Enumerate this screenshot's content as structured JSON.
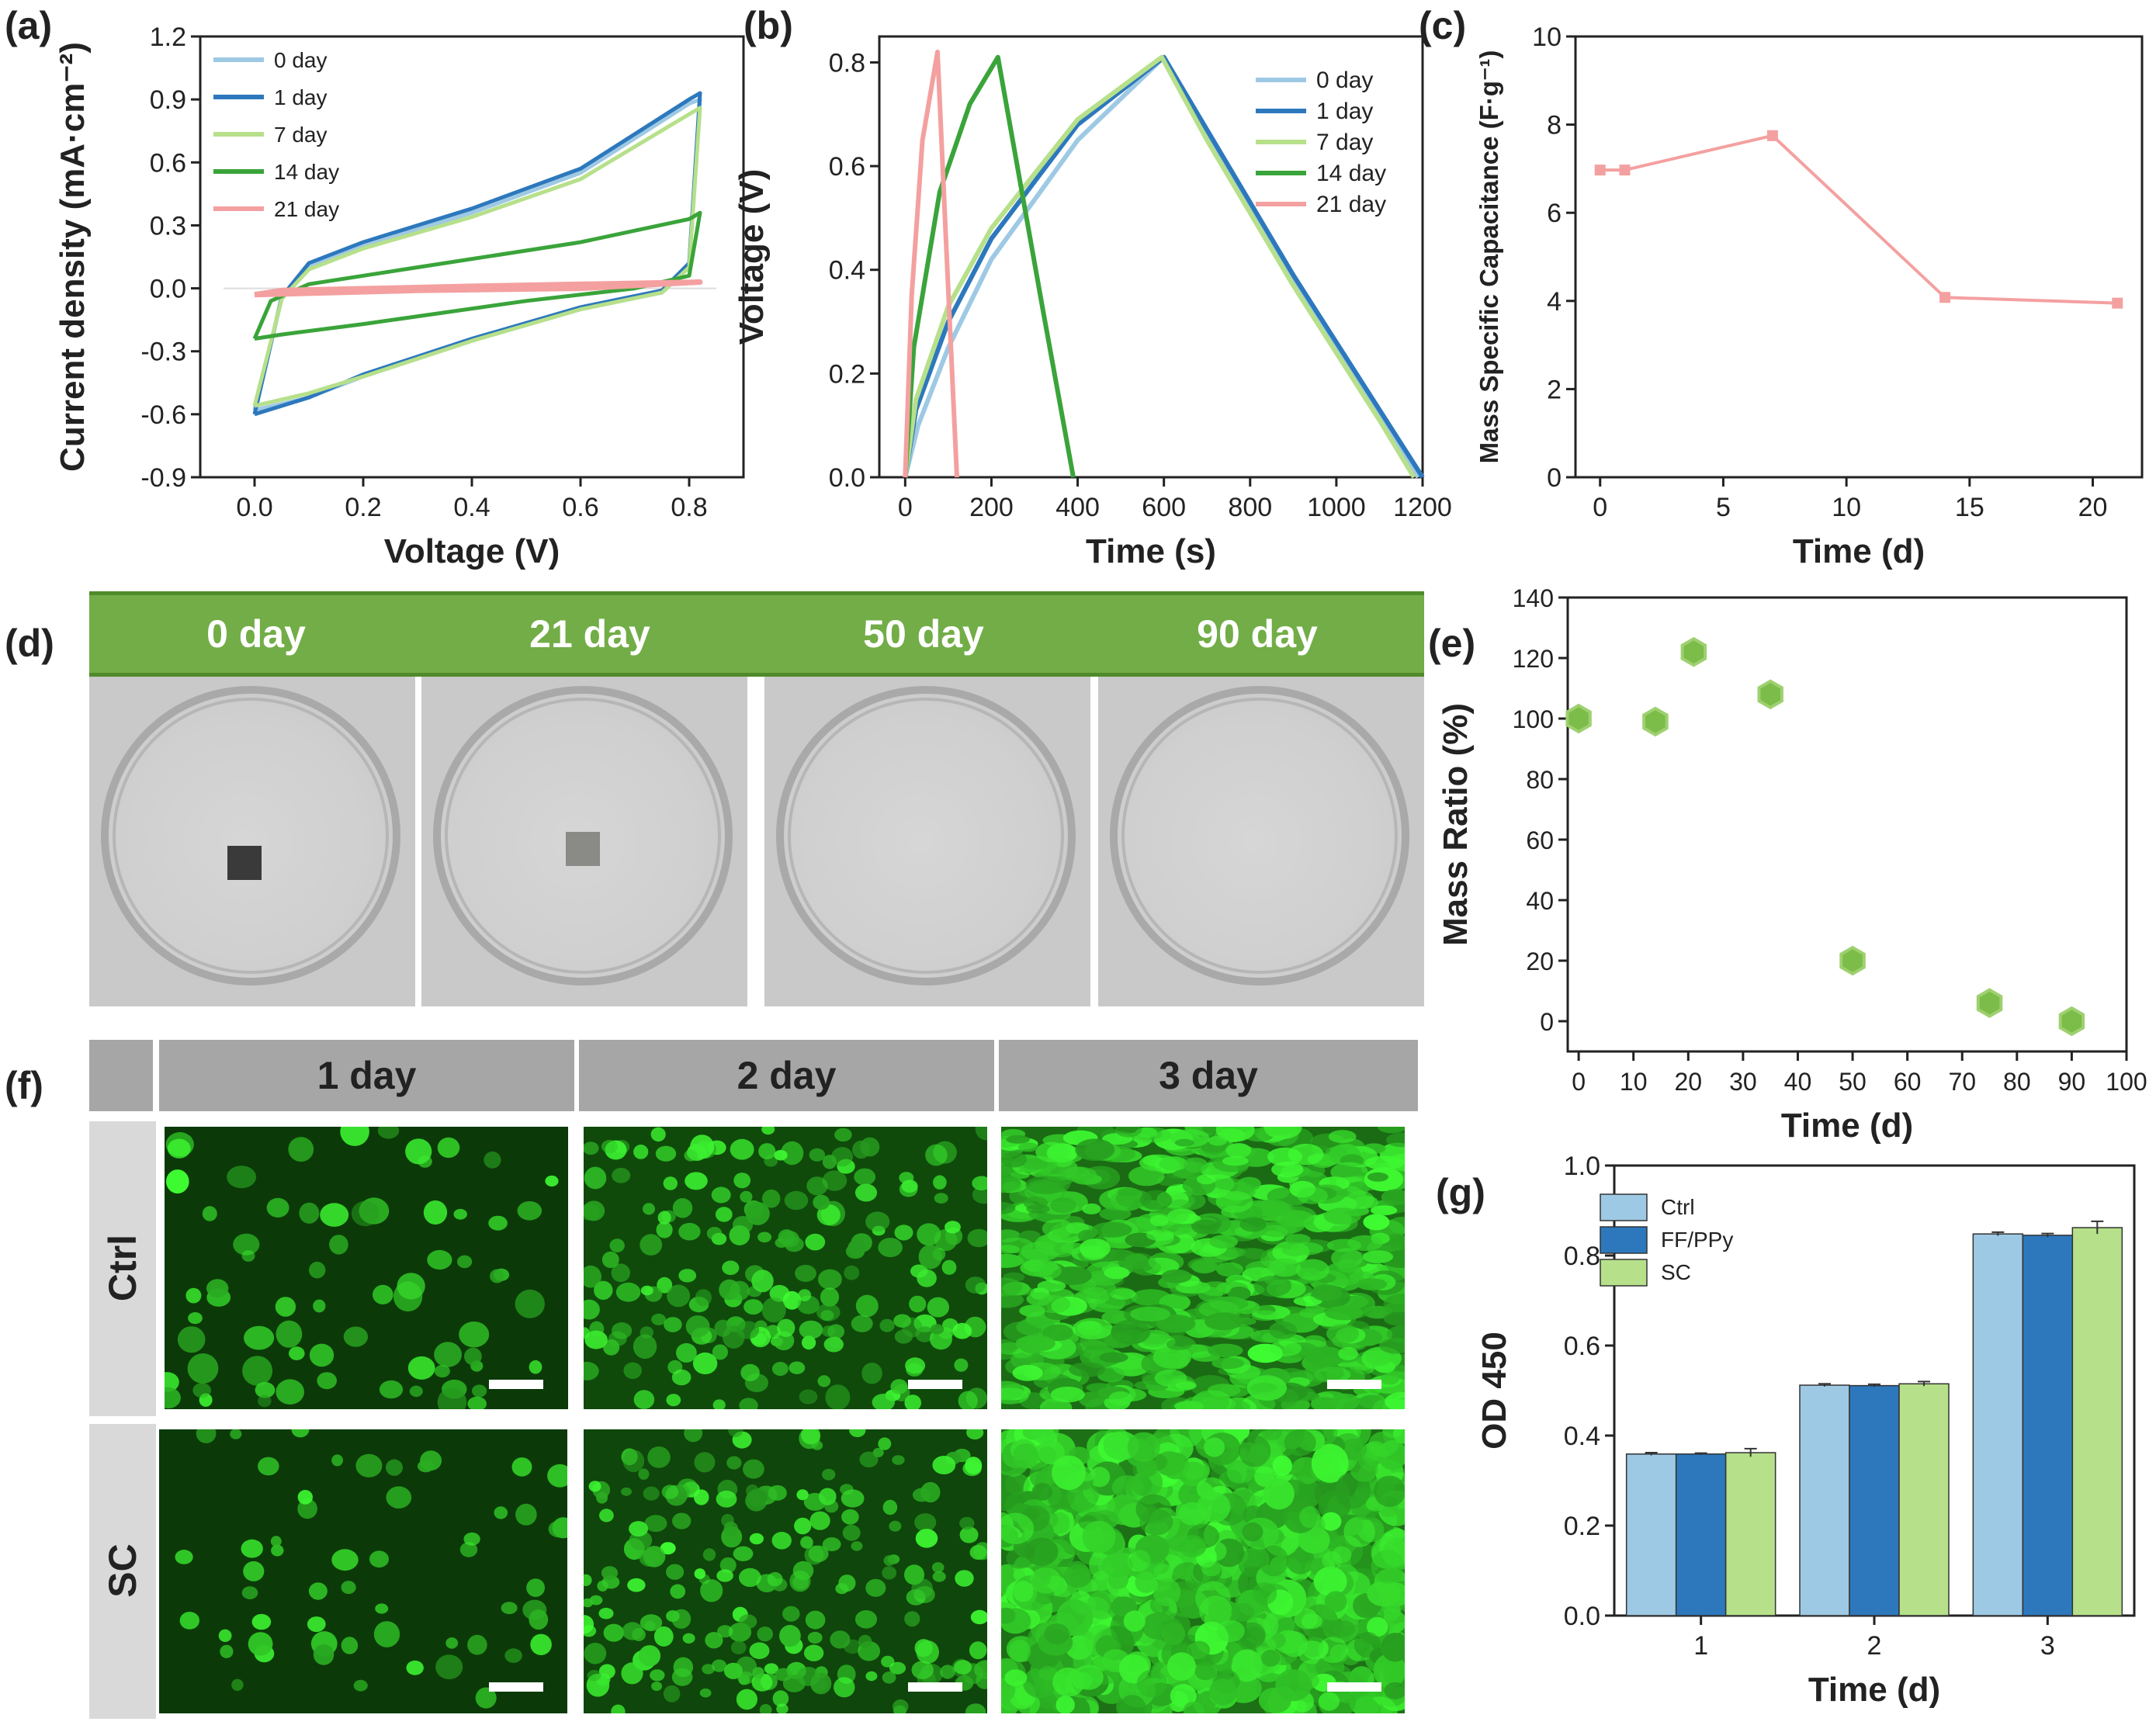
{
  "panel_labels": {
    "a": "(a)",
    "b": "(b)",
    "c": "(c)",
    "d": "(d)",
    "e": "(e)",
    "f": "(f)",
    "g": "(g)"
  },
  "colors": {
    "c0": "#9ec9e4",
    "c1": "#2d78bd",
    "c7": "#b6e08a",
    "c14": "#3aa43a",
    "c21": "#f4a0a0",
    "green_marker": "#7cbc48",
    "banner": "#72ad47"
  },
  "panel_d": {
    "days": [
      "0 day",
      "21 day",
      "50 day",
      "90 day"
    ]
  },
  "panel_f": {
    "columns": [
      "1 day",
      "2 day",
      "3 day"
    ],
    "rows": [
      "Ctrl",
      "SC"
    ]
  },
  "chart_data": [
    {
      "id": "a",
      "type": "line",
      "title": "",
      "xlabel": "Voltage (V)",
      "ylabel": "Current density (mA·cm⁻²)",
      "xlim": [
        -0.1,
        0.9
      ],
      "ylim": [
        -0.9,
        1.2
      ],
      "xticks": [
        "0.0",
        "0.2",
        "0.4",
        "0.6",
        "0.8"
      ],
      "yticks": [
        "-0.9",
        "-0.6",
        "-0.3",
        "0.0",
        "0.3",
        "0.6",
        "0.9",
        "1.2"
      ],
      "legend": [
        "0 day",
        "1 day",
        "7 day",
        "14 day",
        "21 day"
      ],
      "legend_position": "top-left",
      "series": [
        {
          "name": "0 day",
          "upper": [
            [
              0,
              -0.58
            ],
            [
              0.05,
              -0.05
            ],
            [
              0.1,
              0.1
            ],
            [
              0.2,
              0.2
            ],
            [
              0.4,
              0.36
            ],
            [
              0.6,
              0.55
            ],
            [
              0.8,
              0.88
            ],
            [
              0.82,
              0.9
            ]
          ],
          "lower": [
            [
              0.82,
              0.9
            ],
            [
              0.8,
              0.1
            ],
            [
              0.75,
              -0.02
            ],
            [
              0.6,
              -0.1
            ],
            [
              0.4,
              -0.25
            ],
            [
              0.2,
              -0.42
            ],
            [
              0.1,
              -0.52
            ],
            [
              0,
              -0.58
            ]
          ]
        },
        {
          "name": "1 day",
          "upper": [
            [
              0,
              -0.6
            ],
            [
              0.05,
              -0.04
            ],
            [
              0.1,
              0.12
            ],
            [
              0.2,
              0.22
            ],
            [
              0.4,
              0.38
            ],
            [
              0.6,
              0.57
            ],
            [
              0.8,
              0.9
            ],
            [
              0.82,
              0.93
            ]
          ],
          "lower": [
            [
              0.82,
              0.93
            ],
            [
              0.8,
              0.12
            ],
            [
              0.75,
              -0.01
            ],
            [
              0.6,
              -0.09
            ],
            [
              0.4,
              -0.24
            ],
            [
              0.2,
              -0.41
            ],
            [
              0.1,
              -0.52
            ],
            [
              0,
              -0.6
            ]
          ]
        },
        {
          "name": "7 day",
          "upper": [
            [
              0,
              -0.56
            ],
            [
              0.05,
              -0.05
            ],
            [
              0.1,
              0.09
            ],
            [
              0.2,
              0.19
            ],
            [
              0.4,
              0.34
            ],
            [
              0.6,
              0.52
            ],
            [
              0.8,
              0.83
            ],
            [
              0.82,
              0.86
            ]
          ],
          "lower": [
            [
              0.82,
              0.86
            ],
            [
              0.8,
              0.1
            ],
            [
              0.75,
              -0.02
            ],
            [
              0.6,
              -0.1
            ],
            [
              0.4,
              -0.25
            ],
            [
              0.2,
              -0.42
            ],
            [
              0.1,
              -0.5
            ],
            [
              0,
              -0.56
            ]
          ]
        },
        {
          "name": "14 day",
          "upper": [
            [
              0,
              -0.24
            ],
            [
              0.03,
              -0.06
            ],
            [
              0.1,
              0.02
            ],
            [
              0.3,
              0.1
            ],
            [
              0.6,
              0.22
            ],
            [
              0.8,
              0.33
            ],
            [
              0.82,
              0.36
            ]
          ],
          "lower": [
            [
              0.82,
              0.36
            ],
            [
              0.8,
              0.06
            ],
            [
              0.7,
              0.0
            ],
            [
              0.5,
              -0.06
            ],
            [
              0.2,
              -0.17
            ],
            [
              0.05,
              -0.22
            ],
            [
              0,
              -0.24
            ]
          ]
        },
        {
          "name": "21 day",
          "upper": [
            [
              0,
              -0.03
            ],
            [
              0.05,
              -0.01
            ],
            [
              0.4,
              0.01
            ],
            [
              0.82,
              0.03
            ]
          ],
          "lower": [
            [
              0.82,
              0.03
            ],
            [
              0.6,
              0.0
            ],
            [
              0.3,
              -0.01
            ],
            [
              0,
              -0.03
            ]
          ]
        }
      ]
    },
    {
      "id": "b",
      "type": "line",
      "xlabel": "Time (s)",
      "ylabel": "Voltage (V)",
      "xlim": [
        -60,
        1200
      ],
      "ylim": [
        0,
        0.85
      ],
      "xticks": [
        "0",
        "200",
        "400",
        "600",
        "800",
        "1000",
        "1200"
      ],
      "yticks": [
        "0.0",
        "0.2",
        "0.4",
        "0.6",
        "0.8"
      ],
      "legend": [
        "0 day",
        "1 day",
        "7 day",
        "14 day",
        "21 day"
      ],
      "legend_position": "top-right",
      "series": [
        {
          "name": "0 day",
          "points": [
            [
              0,
              0
            ],
            [
              30,
              0.1
            ],
            [
              100,
              0.25
            ],
            [
              200,
              0.42
            ],
            [
              400,
              0.65
            ],
            [
              600,
              0.81
            ],
            [
              700,
              0.66
            ],
            [
              900,
              0.38
            ],
            [
              1100,
              0.12
            ],
            [
              1190,
              0
            ]
          ]
        },
        {
          "name": "1 day",
          "points": [
            [
              0,
              0
            ],
            [
              25,
              0.13
            ],
            [
              100,
              0.3
            ],
            [
              200,
              0.46
            ],
            [
              400,
              0.68
            ],
            [
              600,
              0.81
            ],
            [
              700,
              0.67
            ],
            [
              900,
              0.39
            ],
            [
              1100,
              0.13
            ],
            [
              1200,
              0
            ]
          ]
        },
        {
          "name": "7 day",
          "points": [
            [
              0,
              0
            ],
            [
              25,
              0.15
            ],
            [
              100,
              0.33
            ],
            [
              200,
              0.48
            ],
            [
              400,
              0.69
            ],
            [
              595,
              0.81
            ],
            [
              700,
              0.65
            ],
            [
              900,
              0.37
            ],
            [
              1100,
              0.11
            ],
            [
              1180,
              0
            ]
          ]
        },
        {
          "name": "14 day",
          "points": [
            [
              0,
              0
            ],
            [
              20,
              0.25
            ],
            [
              80,
              0.55
            ],
            [
              150,
              0.72
            ],
            [
              215,
              0.81
            ],
            [
              260,
              0.6
            ],
            [
              320,
              0.32
            ],
            [
              390,
              0
            ]
          ]
        },
        {
          "name": "21 day",
          "points": [
            [
              0,
              0
            ],
            [
              15,
              0.35
            ],
            [
              40,
              0.65
            ],
            [
              75,
              0.82
            ],
            [
              95,
              0.45
            ],
            [
              120,
              0
            ]
          ]
        }
      ]
    },
    {
      "id": "c",
      "type": "line",
      "xlabel": "Time (d)",
      "ylabel": "Mass Specific Capacitance (F·g⁻¹)",
      "xlim": [
        -1,
        22
      ],
      "ylim": [
        0,
        10
      ],
      "xticks": [
        "0",
        "5",
        "10",
        "15",
        "20"
      ],
      "yticks": [
        "0",
        "2",
        "4",
        "6",
        "8",
        "10"
      ],
      "series": [
        {
          "name": "capacitance",
          "x": [
            0,
            1,
            7,
            14,
            21
          ],
          "y": [
            6.97,
            6.97,
            7.75,
            4.08,
            3.95
          ]
        }
      ]
    },
    {
      "id": "e",
      "type": "scatter",
      "xlabel": "Time (d)",
      "ylabel": "Mass Ratio (%)",
      "xlim": [
        -2,
        100
      ],
      "ylim": [
        -10,
        140
      ],
      "xticks": [
        "0",
        "10",
        "20",
        "30",
        "40",
        "50",
        "60",
        "70",
        "80",
        "90",
        "100"
      ],
      "yticks": [
        "0",
        "20",
        "40",
        "60",
        "80",
        "100",
        "120",
        "140"
      ],
      "series": [
        {
          "name": "mass ratio",
          "x": [
            0,
            14,
            21,
            35,
            50,
            75,
            90
          ],
          "y": [
            100,
            99,
            122,
            108,
            20,
            6,
            0
          ]
        }
      ]
    },
    {
      "id": "g",
      "type": "bar",
      "xlabel": "Time (d)",
      "ylabel": "OD 450",
      "ylim": [
        0,
        1.0
      ],
      "yticks": [
        "0.0",
        "0.2",
        "0.4",
        "0.6",
        "0.8",
        "1.0"
      ],
      "categories": [
        "1",
        "2",
        "3"
      ],
      "legend": [
        "Ctrl",
        "FF/PPy",
        "SC"
      ],
      "legend_position": "top-left",
      "series": [
        {
          "name": "Ctrl",
          "values": [
            0.359,
            0.512,
            0.848
          ],
          "errors": [
            0.003,
            0.003,
            0.004
          ]
        },
        {
          "name": "FF/PPy",
          "values": [
            0.359,
            0.511,
            0.845
          ],
          "errors": [
            0.002,
            0.003,
            0.004
          ]
        },
        {
          "name": "SC",
          "values": [
            0.362,
            0.515,
            0.862
          ],
          "errors": [
            0.009,
            0.005,
            0.014
          ]
        }
      ]
    }
  ]
}
